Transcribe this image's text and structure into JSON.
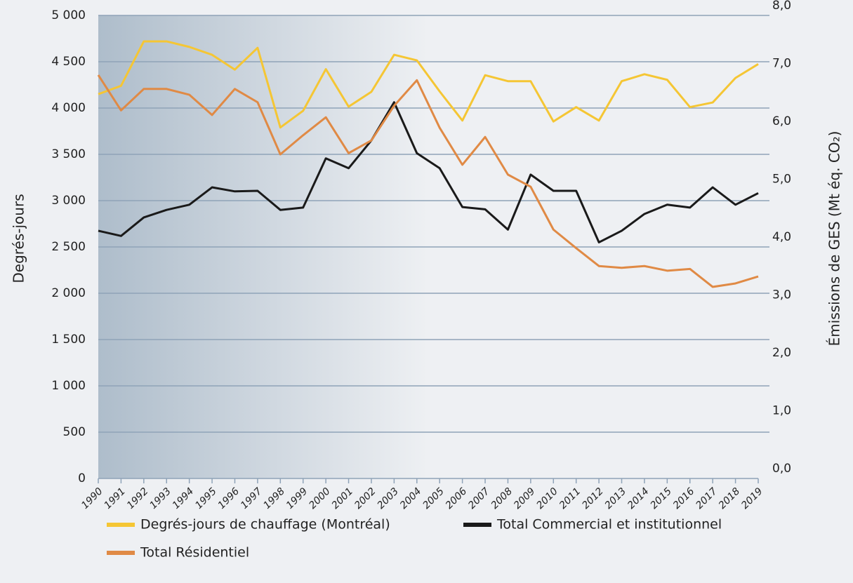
{
  "chart_data": {
    "type": "line",
    "y_label": "Degrés-jours",
    "y2_label": "Émissions de GES (Mt éq. CO₂)",
    "categories": [
      "1990",
      "1991",
      "1992",
      "1993",
      "1994",
      "1995",
      "1996",
      "1997",
      "1998",
      "1999",
      "2000",
      "2001",
      "2002",
      "2003",
      "2004",
      "2005",
      "2006",
      "2007",
      "2008",
      "2009",
      "2010",
      "2011",
      "2012",
      "2013",
      "2014",
      "2015",
      "2016",
      "2017",
      "2018",
      "2019"
    ],
    "ylim": [
      0,
      5000
    ],
    "yticks": [
      0,
      500,
      {
        "value": 1000,
        "label": "1 000"
      },
      {
        "value": 1500,
        "label": "1 500"
      },
      {
        "value": 2000,
        "label": "2 000"
      },
      {
        "value": 2500,
        "label": "2 500"
      },
      {
        "value": 3000,
        "label": "3 000"
      },
      {
        "value": 3500,
        "label": "3 500"
      },
      {
        "value": 4000,
        "label": "4 000"
      },
      {
        "value": 4500,
        "label": "4 500"
      },
      {
        "value": 5000,
        "label": "5 000"
      }
    ],
    "y2lim": [
      0,
      8
    ],
    "y2ticks": [
      {
        "value": 0,
        "label": "0,0"
      },
      {
        "value": 1,
        "label": "1,0"
      },
      {
        "value": 2,
        "label": "2,0"
      },
      {
        "value": 3,
        "label": "3,0"
      },
      {
        "value": 4,
        "label": "4,0"
      },
      {
        "value": 5,
        "label": "5,0"
      },
      {
        "value": 6,
        "label": "6,0"
      },
      {
        "value": 7,
        "label": "7,0"
      },
      {
        "value": 8,
        "label": "8,0"
      }
    ],
    "grid": true,
    "series": [
      {
        "name": "Degrés-jours de chauffage (Montréal)",
        "color": "#f5c634",
        "values": [
          4150,
          4240,
          4720,
          4720,
          4660,
          4575,
          4415,
          4650,
          3790,
          3970,
          4420,
          4015,
          4175,
          4575,
          4515,
          4180,
          3865,
          4355,
          4290,
          4290,
          3855,
          4010,
          3865,
          4290,
          4365,
          4305,
          4010,
          4060,
          4325,
          4475
        ]
      },
      {
        "name": "Total Commercial et institutionnel",
        "color": "#1a1a1a",
        "axis": "y2",
        "values": [
          4.28,
          4.19,
          4.51,
          4.64,
          4.73,
          5.03,
          4.96,
          4.97,
          4.64,
          4.68,
          5.53,
          5.36,
          5.84,
          6.5,
          5.62,
          5.36,
          4.69,
          4.65,
          4.3,
          5.25,
          4.97,
          4.97,
          4.08,
          4.28,
          4.57,
          4.73,
          4.68,
          5.03,
          4.73,
          4.93
        ]
      },
      {
        "name": "Total Résidentiel",
        "color": "#e08a45",
        "axis": "y2",
        "values": [
          6.97,
          6.36,
          6.73,
          6.73,
          6.63,
          6.28,
          6.73,
          6.5,
          5.6,
          5.93,
          6.24,
          5.62,
          5.84,
          6.44,
          6.88,
          6.06,
          5.42,
          5.9,
          5.25,
          5.04,
          4.3,
          3.98,
          3.67,
          3.64,
          3.67,
          3.59,
          3.62,
          3.31,
          3.37,
          3.49
        ]
      }
    ]
  }
}
